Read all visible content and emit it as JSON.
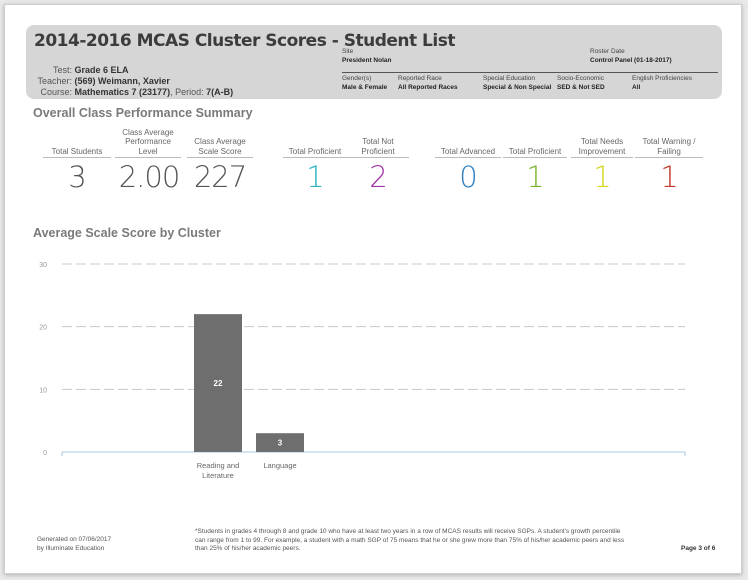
{
  "report": {
    "title": "2014-2016 MCAS Cluster Scores - Student List",
    "test_label": "Test:",
    "test_value": "Grade 6 ELA",
    "teacher_label": "Teacher:",
    "teacher_value": "(569) Weimann, Xavier",
    "course_label": "Course:",
    "course_value": "Mathematics 7 (23177)",
    "period_label": ", Period:",
    "period_value": "7(A-B)"
  },
  "meta": {
    "site_label": "Site",
    "site_value": "President Nolan",
    "roster_label": "Roster Date",
    "roster_value": "Control Panel (01-18-2017)",
    "gender_label": "Gender(s)",
    "gender_value": "Male & Female",
    "race_label": "Reported Race",
    "race_value": "All Reported Races",
    "sped_label": "Special Education",
    "sped_value": "Special & Non Special",
    "ses_label": "Socio-Economic",
    "ses_value": "SED & Not SED",
    "elp_label": "English Proficiencies",
    "elp_value": "All"
  },
  "summary": {
    "title": "Overall Class Performance Summary",
    "stats": [
      {
        "label": "Total Students",
        "value": "3",
        "color": "#555555"
      },
      {
        "label": "Class Average Performance Level",
        "value": "2.00",
        "color": "#555555"
      },
      {
        "label": "Class Average Scale Score",
        "value": "227",
        "color": "#555555"
      },
      {
        "label": "Total Proficient",
        "value": "1",
        "color": "#2cb5c0"
      },
      {
        "label": "Total Not Proficient",
        "value": "2",
        "color": "#a033a6"
      },
      {
        "label": "Total Advanced",
        "value": "0",
        "color": "#2e7fc0"
      },
      {
        "label": "Total Proficient",
        "value": "1",
        "color": "#7ab32e"
      },
      {
        "label": "Total Needs Improvement",
        "value": "1",
        "color": "#d6d61e"
      },
      {
        "label": "Total Warning / Failing",
        "value": "1",
        "color": "#c0392b"
      }
    ]
  },
  "chart_section": {
    "title": "Average Scale Score by Cluster"
  },
  "chart_data": {
    "type": "bar",
    "title": "Average Scale Score by Cluster",
    "categories": [
      "Reading and Literature",
      "Language"
    ],
    "values": [
      22,
      3
    ],
    "data_labels": [
      "22",
      "3"
    ],
    "yticks": [
      "0",
      "10",
      "20",
      "30"
    ],
    "ylim": [
      0,
      30
    ],
    "grid": true,
    "bar_color": "#6e6e6e",
    "grid_color": "#c8c8c8",
    "axis_color": "#aac8e0"
  },
  "footer": {
    "generated_line1": "Generated on 07/06/2017",
    "generated_line2": "by Illuminate Education",
    "note": "*Students in grades 4 through 8 and grade 10 who have at least two years in a row of MCAS results will receive SGPs. A student's growth percentile can range from 1 to 99. For example, a student with a math SGP of 75 means that he or she grew more than 75% of his/her academic peers and less than 25% of his/her academic peers.",
    "page": "Page 3 of 6"
  }
}
